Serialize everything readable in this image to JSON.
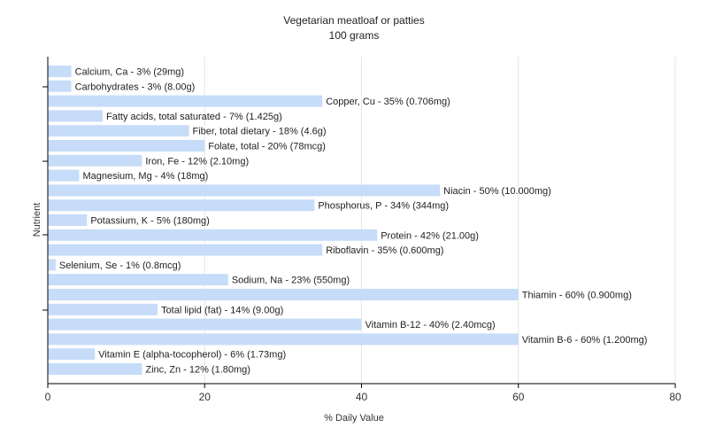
{
  "chart_data": {
    "type": "bar",
    "orientation": "horizontal",
    "title": "Vegetarian meatloaf or patties",
    "subtitle": "100 grams",
    "xlabel": "% Daily Value",
    "ylabel": "Nutrient",
    "xlim": [
      0,
      80
    ],
    "xticks": [
      0,
      20,
      40,
      60,
      80
    ],
    "grid": true,
    "bar_color": "#c6dcf8",
    "categories": [
      "Calcium, Ca",
      "Carbohydrates",
      "Copper, Cu",
      "Fatty acids, total saturated",
      "Fiber, total dietary",
      "Folate, total",
      "Iron, Fe",
      "Magnesium, Mg",
      "Niacin",
      "Phosphorus, P",
      "Potassium, K",
      "Protein",
      "Riboflavin",
      "Selenium, Se",
      "Sodium, Na",
      "Thiamin",
      "Total lipid (fat)",
      "Vitamin B-12",
      "Vitamin B-6",
      "Vitamin E (alpha-tocopherol)",
      "Zinc, Zn"
    ],
    "values": [
      3,
      3,
      35,
      7,
      18,
      20,
      12,
      4,
      50,
      34,
      5,
      42,
      35,
      1,
      23,
      60,
      14,
      40,
      60,
      6,
      12
    ],
    "labels": [
      "Calcium, Ca - 3% (29mg)",
      "Carbohydrates - 3% (8.00g)",
      "Copper, Cu - 35% (0.706mg)",
      "Fatty acids, total saturated - 7% (1.425g)",
      "Fiber, total dietary - 18% (4.6g)",
      "Folate, total - 20% (78mcg)",
      "Iron, Fe - 12% (2.10mg)",
      "Magnesium, Mg - 4% (18mg)",
      "Niacin - 50% (10.000mg)",
      "Phosphorus, P - 34% (344mg)",
      "Potassium, K - 5% (180mg)",
      "Protein - 42% (21.00g)",
      "Riboflavin - 35% (0.600mg)",
      "Selenium, Se - 1% (0.8mcg)",
      "Sodium, Na - 23% (550mg)",
      "Thiamin - 60% (0.900mg)",
      "Total lipid (fat) - 14% (9.00g)",
      "Vitamin B-12 - 40% (2.40mcg)",
      "Vitamin B-6 - 60% (1.200mg)",
      "Vitamin E (alpha-tocopherol) - 6% (1.73mg)",
      "Zinc, Zn - 12% (1.80mg)"
    ]
  }
}
